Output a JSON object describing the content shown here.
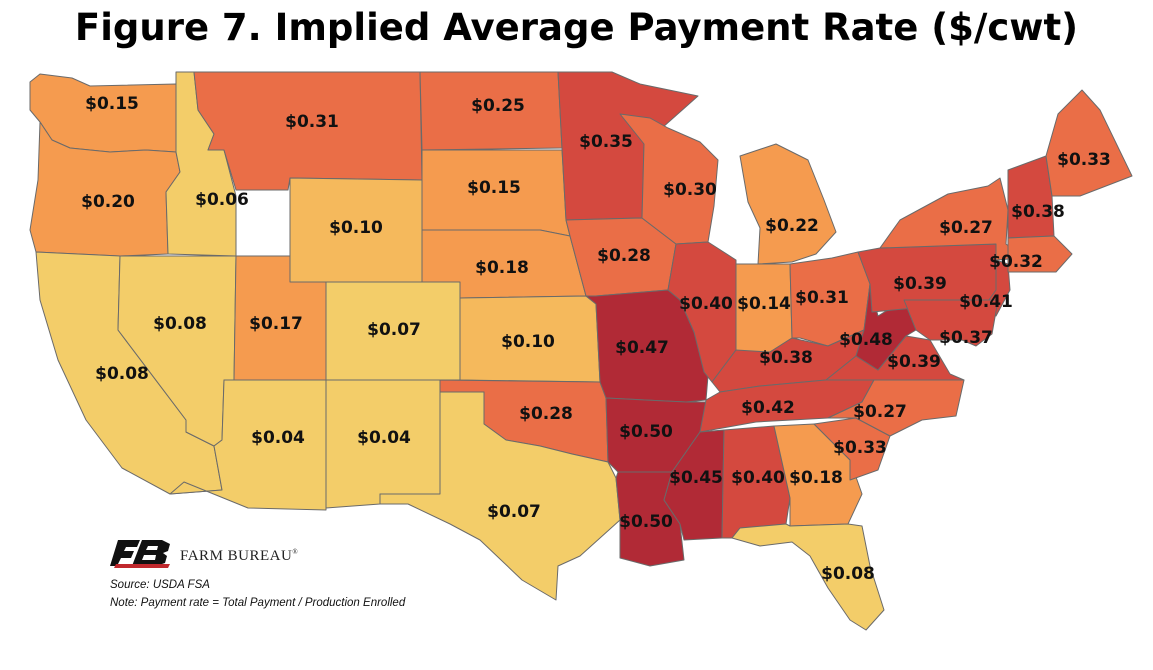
{
  "title": "Figure 7. Implied Average Payment Rate ($/cwt)",
  "source": "Source:  USDA FSA",
  "note": "Note: Payment rate = Total Payment / Production Enrolled",
  "logo": {
    "text": "FARM BUREAU",
    "mark_text": "FB",
    "icon": "farm-bureau-logo"
  },
  "legend_colors": {
    "low": "#f3cd69",
    "low_mid": "#f5b95c",
    "mid": "#f59b4f",
    "mid_high": "#ea6e47",
    "high": "#d4493f",
    "top": "#b12a36"
  },
  "chart_data": {
    "type": "map",
    "title": "Figure 7. Implied Average Payment Rate ($/cwt)",
    "unit": "$/cwt",
    "states": [
      {
        "id": "WA",
        "value": 0.15,
        "label": "$0.15"
      },
      {
        "id": "OR",
        "value": 0.2,
        "label": "$0.20"
      },
      {
        "id": "CA",
        "value": 0.08,
        "label": "$0.08"
      },
      {
        "id": "ID",
        "value": 0.06,
        "label": "$0.06"
      },
      {
        "id": "NV",
        "value": 0.08,
        "label": "$0.08"
      },
      {
        "id": "MT",
        "value": 0.31,
        "label": "$0.31"
      },
      {
        "id": "WY",
        "value": 0.1,
        "label": "$0.10"
      },
      {
        "id": "UT",
        "value": 0.17,
        "label": "$0.17"
      },
      {
        "id": "CO",
        "value": 0.07,
        "label": "$0.07"
      },
      {
        "id": "AZ",
        "value": 0.04,
        "label": "$0.04"
      },
      {
        "id": "NM",
        "value": 0.04,
        "label": "$0.04"
      },
      {
        "id": "ND",
        "value": 0.25,
        "label": "$0.25"
      },
      {
        "id": "SD",
        "value": 0.15,
        "label": "$0.15"
      },
      {
        "id": "NE",
        "value": 0.18,
        "label": "$0.18"
      },
      {
        "id": "KS",
        "value": 0.1,
        "label": "$0.10"
      },
      {
        "id": "OK",
        "value": 0.28,
        "label": "$0.28"
      },
      {
        "id": "TX",
        "value": 0.07,
        "label": "$0.07"
      },
      {
        "id": "MN",
        "value": 0.35,
        "label": "$0.35"
      },
      {
        "id": "IA",
        "value": 0.28,
        "label": "$0.28"
      },
      {
        "id": "MO",
        "value": 0.47,
        "label": "$0.47"
      },
      {
        "id": "AR",
        "value": 0.5,
        "label": "$0.50"
      },
      {
        "id": "LA",
        "value": 0.5,
        "label": "$0.50"
      },
      {
        "id": "WI",
        "value": 0.3,
        "label": "$0.30"
      },
      {
        "id": "IL",
        "value": 0.4,
        "label": "$0.40"
      },
      {
        "id": "MI",
        "value": 0.22,
        "label": "$0.22"
      },
      {
        "id": "IN",
        "value": 0.14,
        "label": "$0.14"
      },
      {
        "id": "OH",
        "value": 0.31,
        "label": "$0.31"
      },
      {
        "id": "KY",
        "value": 0.38,
        "label": "$0.38"
      },
      {
        "id": "TN",
        "value": 0.42,
        "label": "$0.42"
      },
      {
        "id": "MS",
        "value": 0.45,
        "label": "$0.45"
      },
      {
        "id": "AL",
        "value": 0.4,
        "label": "$0.40"
      },
      {
        "id": "GA",
        "value": 0.18,
        "label": "$0.18"
      },
      {
        "id": "FL",
        "value": 0.08,
        "label": "$0.08"
      },
      {
        "id": "SC",
        "value": 0.33,
        "label": "$0.33"
      },
      {
        "id": "NC",
        "value": 0.27,
        "label": "$0.27"
      },
      {
        "id": "VA",
        "value": 0.39,
        "label": "$0.39"
      },
      {
        "id": "WV",
        "value": 0.48,
        "label": "$0.48"
      },
      {
        "id": "PA",
        "value": 0.39,
        "label": "$0.39"
      },
      {
        "id": "NY",
        "value": 0.27,
        "label": "$0.27"
      },
      {
        "id": "NJ",
        "value": 0.41,
        "label": "$0.41"
      },
      {
        "id": "MD",
        "value": 0.37,
        "label": "$0.37"
      },
      {
        "id": "VT_NH",
        "value": 0.38,
        "label": "$0.38"
      },
      {
        "id": "ME",
        "value": 0.33,
        "label": "$0.33"
      },
      {
        "id": "MA_CT_RI",
        "value": 0.32,
        "label": "$0.32"
      }
    ]
  }
}
